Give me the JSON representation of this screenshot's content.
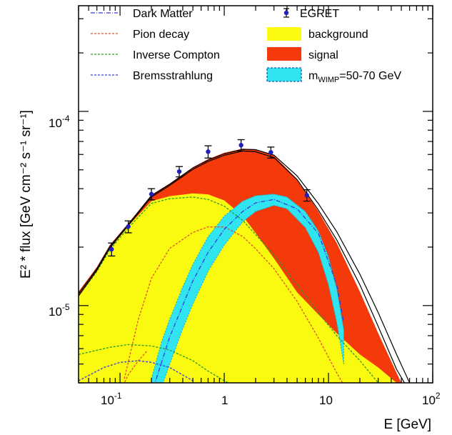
{
  "chart_data": {
    "type": "area",
    "x_scale": "log",
    "y_scale": "log",
    "xlim": [
      0.04,
      100
    ],
    "ylim": [
      4e-06,
      0.00035
    ],
    "xlabel": "E [GeV]",
    "ylabel": "E² * flux [GeV cm⁻² s⁻¹ sr⁻¹]",
    "x_ticks": [
      {
        "value": 0.1,
        "base": "10",
        "exp": "-1"
      },
      {
        "value": 1,
        "base": "1",
        "exp": ""
      },
      {
        "value": 10,
        "base": "10",
        "exp": ""
      },
      {
        "value": 100,
        "base": "10",
        "exp": "2"
      }
    ],
    "y_ticks": [
      {
        "value": 1e-05,
        "base": "10",
        "exp": "-5"
      },
      {
        "value": 0.0001,
        "base": "10",
        "exp": "-4"
      }
    ],
    "legend": [
      {
        "label": "Dark Matter",
        "kind": "dashdot",
        "color": "#3a3ad8"
      },
      {
        "label": "Pion decay",
        "kind": "dash",
        "color": "#e0502a"
      },
      {
        "label": "Inverse Compton",
        "kind": "dash",
        "color": "#2a9a2a"
      },
      {
        "label": "Bremsstrahlung",
        "kind": "dash",
        "color": "#3a3ad8"
      },
      {
        "label": "EGRET",
        "kind": "point",
        "color": "#2020c0"
      },
      {
        "label": "background",
        "kind": "fill",
        "color": "#fafa10"
      },
      {
        "label": "signal",
        "kind": "fill",
        "color": "#f43a0a"
      },
      {
        "label": "m",
        "sub": "WIMP",
        "suffix": "=50-70 GeV",
        "kind": "band",
        "color": "#30e4f0"
      }
    ],
    "egret": {
      "x": [
        0.083,
        0.12,
        0.2,
        0.37,
        0.7,
        1.45,
        2.8,
        6.2
      ],
      "y": [
        1.95e-05,
        2.55e-05,
        3.75e-05,
        4.9e-05,
        6.2e-05,
        6.7e-05,
        6.15e-05,
        3.7e-05
      ],
      "err": [
        1.5e-06,
        1.8e-06,
        2.5e-06,
        3e-06,
        4.5e-06,
        4.5e-06,
        4e-06,
        2.5e-06
      ]
    },
    "background": {
      "x": [
        0.04,
        0.06,
        0.08,
        0.12,
        0.2,
        0.3,
        0.5,
        0.7,
        1,
        1.5,
        2,
        3,
        5,
        8,
        12,
        20,
        30,
        45,
        55
      ],
      "y": [
        1.12e-05,
        1.52e-05,
        1.98e-05,
        2.57e-05,
        3.45e-05,
        3.66e-05,
        3.78e-05,
        3.74e-05,
        3.48e-05,
        2.9e-05,
        2.36e-05,
        1.75e-05,
        1.17e-05,
        9e-06,
        7.2e-06,
        5.6e-06,
        4.8e-06,
        4e-06,
        3.6e-06
      ]
    },
    "total": {
      "x": [
        0.04,
        0.06,
        0.08,
        0.12,
        0.2,
        0.3,
        0.5,
        0.7,
        1,
        1.5,
        2,
        3,
        5,
        8,
        12,
        20,
        30,
        45,
        55
      ],
      "y": [
        1.18e-05,
        1.58e-05,
        2.05e-05,
        2.65e-05,
        3.72e-05,
        4.25e-05,
        5.15e-05,
        5.67e-05,
        6.12e-05,
        6.42e-05,
        6.38e-05,
        5.92e-05,
        4.48e-05,
        3.05e-05,
        2.1e-05,
        1.18e-05,
        7.2e-06,
        4.5e-06,
        3.6e-06
      ]
    },
    "total_lines": [
      {
        "x": [
          0.04,
          0.06,
          0.08,
          0.12,
          0.2,
          0.3,
          0.5,
          0.7,
          1,
          1.5,
          2,
          3,
          5,
          8,
          12,
          20,
          30,
          45,
          60
        ],
        "y": [
          1.15e-05,
          1.55e-05,
          2.02e-05,
          2.62e-05,
          3.68e-05,
          4.22e-05,
          5.12e-05,
          5.62e-05,
          6.05e-05,
          6.38e-05,
          6.35e-05,
          5.95e-05,
          4.65e-05,
          3.35e-05,
          2.4e-05,
          1.45e-05,
          9.2e-06,
          5.6e-06,
          4e-06
        ]
      },
      {
        "x": [
          0.04,
          0.06,
          0.08,
          0.12,
          0.2,
          0.3,
          0.5,
          0.7,
          1,
          1.5,
          2,
          3,
          5,
          8,
          12,
          20,
          30,
          45,
          60
        ],
        "y": [
          1.12e-05,
          1.52e-05,
          1.98e-05,
          2.58e-05,
          3.62e-05,
          4.16e-05,
          5.03e-05,
          5.52e-05,
          5.94e-05,
          6.25e-05,
          6.2e-05,
          5.78e-05,
          4.45e-05,
          3.1e-05,
          2.18e-05,
          1.28e-05,
          7.8e-06,
          4.7e-06,
          3.6e-06
        ]
      }
    ],
    "wimp_band": {
      "x": [
        0.2,
        0.25,
        0.3,
        0.4,
        0.5,
        0.7,
        1,
        1.5,
        2,
        3,
        4,
        6,
        8,
        10,
        12,
        14
      ],
      "upper": [
        4.2e-06,
        6.5e-06,
        8.5e-06,
        1.25e-05,
        1.63e-05,
        2.26e-05,
        2.89e-05,
        3.45e-05,
        3.68e-05,
        3.75e-05,
        3.62e-05,
        3.05e-05,
        2.42e-05,
        1.78e-05,
        1.22e-05,
        7.5e-06
      ],
      "lower": [
        2.5e-06,
        3.8e-06,
        5e-06,
        7.6e-06,
        1.02e-05,
        1.5e-05,
        2.05e-05,
        2.7e-05,
        3.05e-05,
        3.28e-05,
        3.15e-05,
        2.52e-05,
        1.88e-05,
        1.28e-05,
        8.2e-06,
        5e-06
      ]
    },
    "pion_decay": {
      "x": [
        0.11,
        0.15,
        0.2,
        0.3,
        0.5,
        0.7,
        1,
        1.5,
        2,
        3,
        5,
        8,
        12,
        20
      ],
      "y": [
        4.2e-06,
        8.5e-06,
        1.38e-05,
        1.97e-05,
        2.38e-05,
        2.54e-05,
        2.54e-05,
        2.27e-05,
        1.96e-05,
        1.55e-05,
        1.05e-05,
        6.8e-06,
        4.5e-06,
        2.8e-06
      ]
    },
    "inverse_compton": {
      "x": [
        0.04,
        0.06,
        0.08,
        0.12,
        0.2,
        0.3,
        0.5,
        0.7,
        1,
        1.5,
        2,
        3,
        5,
        8,
        12,
        20,
        30
      ],
      "y": [
        1.12e-05,
        1.5e-05,
        1.94e-05,
        2.51e-05,
        3.36e-05,
        3.55e-05,
        3.62e-05,
        3.52e-05,
        3.25e-05,
        2.75e-05,
        2.32e-05,
        1.82e-05,
        1.28e-05,
        9.2e-06,
        7e-06,
        5.2e-06,
        4e-06
      ]
    },
    "bremsstrahlung": {
      "x": [
        0.04,
        0.08,
        0.12,
        0.2,
        0.3,
        0.5,
        0.7,
        1,
        1.2
      ],
      "y": [
        5.6e-06,
        6.1e-06,
        6.3e-06,
        6.2e-06,
        5.9e-06,
        5.2e-06,
        4.6e-06,
        4.1e-06,
        3.9e-06
      ]
    },
    "brems_low": {
      "x": [
        0.04,
        0.07,
        0.1,
        0.15,
        0.2,
        0.3,
        0.5
      ],
      "y": [
        4.1e-06,
        4.8e-06,
        5.1e-06,
        5.2e-06,
        5.1e-06,
        4.8e-06,
        4.1e-06
      ]
    },
    "dark_matter": {
      "x": [
        0.2,
        0.3,
        0.5,
        0.7,
        1,
        1.5,
        2,
        3,
        5,
        8,
        12,
        14
      ],
      "y": [
        3.5e-06,
        6.9e-06,
        1.34e-05,
        1.88e-05,
        2.47e-05,
        3.05e-05,
        3.38e-05,
        3.52e-05,
        3.15e-05,
        2.35e-05,
        1.28e-05,
        8.2e-06
      ]
    },
    "pion_low": {
      "x": [
        0.1,
        0.12,
        0.15,
        0.18
      ],
      "y": [
        3.6e-06,
        4.4e-06,
        5.2e-06,
        5.8e-06
      ]
    }
  }
}
